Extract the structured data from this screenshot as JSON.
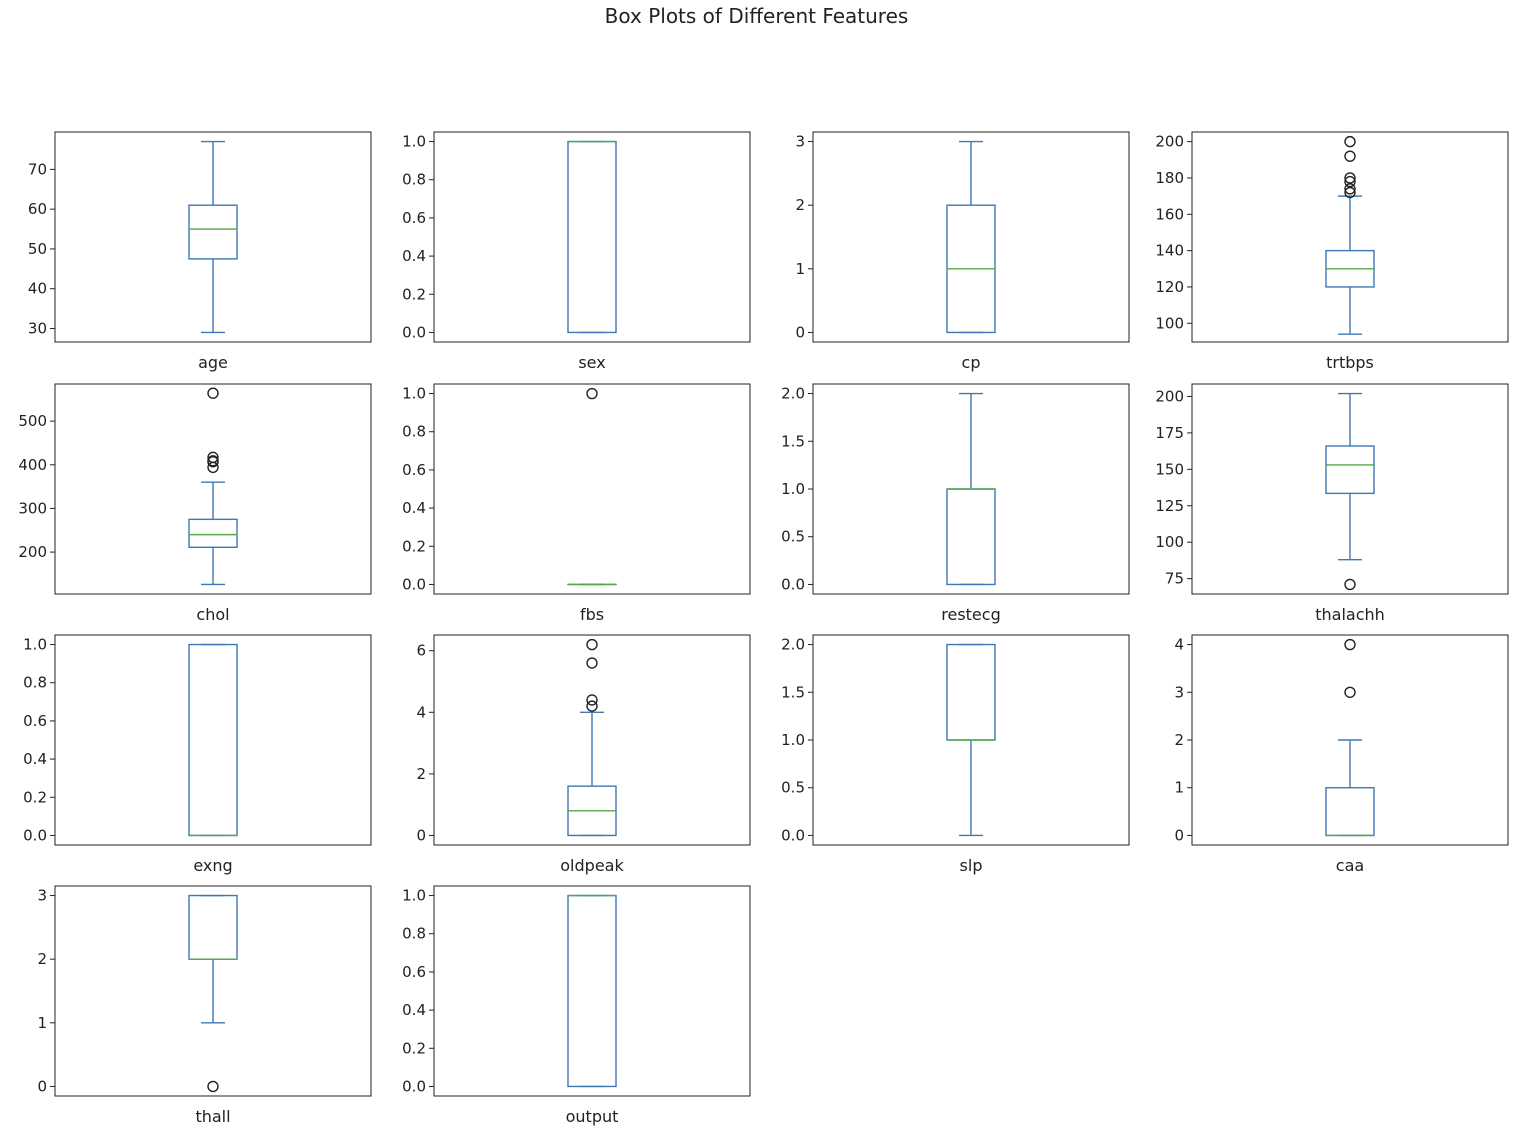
{
  "title": "Box Plots of Different Features",
  "colors": {
    "box": "#3f77b4",
    "median": "#54a845",
    "flier": "#222222",
    "frame": "#222222"
  },
  "chart_data": [
    {
      "type": "box",
      "xlabel": "age",
      "ylim": [
        26.6,
        79.4
      ],
      "yticks": [
        30,
        40,
        50,
        60,
        70
      ],
      "stats": {
        "whislo": 29,
        "q1": 47.5,
        "med": 55,
        "q3": 61,
        "whishi": 77
      },
      "fliers": []
    },
    {
      "type": "box",
      "xlabel": "sex",
      "ylim": [
        -0.05,
        1.05
      ],
      "yticks": [
        0.0,
        0.2,
        0.4,
        0.6,
        0.8,
        1.0
      ],
      "stats": {
        "whislo": 0,
        "q1": 0,
        "med": 1,
        "q3": 1,
        "whishi": 1
      },
      "fliers": []
    },
    {
      "type": "box",
      "xlabel": "cp",
      "ylim": [
        -0.15,
        3.15
      ],
      "yticks": [
        0,
        1,
        2,
        3
      ],
      "stats": {
        "whislo": 0,
        "q1": 0,
        "med": 1,
        "q3": 2,
        "whishi": 3
      },
      "fliers": []
    },
    {
      "type": "box",
      "xlabel": "trtbps",
      "ylim": [
        89.7,
        205.3
      ],
      "yticks": [
        100,
        120,
        140,
        160,
        180,
        200
      ],
      "stats": {
        "whislo": 94,
        "q1": 120,
        "med": 130,
        "q3": 140,
        "whishi": 170
      },
      "fliers": [
        172,
        174,
        178,
        180,
        192,
        200
      ]
    },
    {
      "type": "box",
      "xlabel": "chol",
      "ylim": [
        104,
        585
      ],
      "yticks": [
        200,
        300,
        400,
        500
      ],
      "stats": {
        "whislo": 126,
        "q1": 211,
        "med": 240,
        "q3": 275,
        "whishi": 360
      },
      "fliers": [
        394,
        407,
        409,
        417,
        564
      ]
    },
    {
      "type": "box",
      "xlabel": "fbs",
      "ylim": [
        -0.05,
        1.05
      ],
      "yticks": [
        0.0,
        0.2,
        0.4,
        0.6,
        0.8,
        1.0
      ],
      "stats": {
        "whislo": 0,
        "q1": 0,
        "med": 0,
        "q3": 0,
        "whishi": 0
      },
      "fliers": [
        1
      ]
    },
    {
      "type": "box",
      "xlabel": "restecg",
      "ylim": [
        -0.1,
        2.1
      ],
      "yticks": [
        0.0,
        0.5,
        1.0,
        1.5,
        2.0
      ],
      "stats": {
        "whislo": 0,
        "q1": 0,
        "med": 1,
        "q3": 1,
        "whishi": 2
      },
      "fliers": []
    },
    {
      "type": "box",
      "xlabel": "thalachh",
      "ylim": [
        64.45,
        208.55
      ],
      "yticks": [
        75,
        100,
        125,
        150,
        175,
        200
      ],
      "stats": {
        "whislo": 88,
        "q1": 133.5,
        "med": 153,
        "q3": 166,
        "whishi": 202
      },
      "fliers": [
        71
      ]
    },
    {
      "type": "box",
      "xlabel": "exng",
      "ylim": [
        -0.05,
        1.05
      ],
      "yticks": [
        0.0,
        0.2,
        0.4,
        0.6,
        0.8,
        1.0
      ],
      "stats": {
        "whislo": 0,
        "q1": 0,
        "med": 0,
        "q3": 1,
        "whishi": 1
      },
      "fliers": []
    },
    {
      "type": "box",
      "xlabel": "oldpeak",
      "ylim": [
        -0.31,
        6.51
      ],
      "yticks": [
        0,
        2,
        4,
        6
      ],
      "stats": {
        "whislo": 0,
        "q1": 0,
        "med": 0.8,
        "q3": 1.6,
        "whishi": 4.0
      },
      "fliers": [
        4.2,
        4.4,
        5.6,
        6.2
      ]
    },
    {
      "type": "box",
      "xlabel": "slp",
      "ylim": [
        -0.1,
        2.1
      ],
      "yticks": [
        0.0,
        0.5,
        1.0,
        1.5,
        2.0
      ],
      "stats": {
        "whislo": 0,
        "q1": 1,
        "med": 1,
        "q3": 2,
        "whishi": 2
      },
      "fliers": []
    },
    {
      "type": "box",
      "xlabel": "caa",
      "ylim": [
        -0.2,
        4.2
      ],
      "yticks": [
        0,
        1,
        2,
        3,
        4
      ],
      "stats": {
        "whislo": 0,
        "q1": 0,
        "med": 0,
        "q3": 1,
        "whishi": 2
      },
      "fliers": [
        3,
        4
      ]
    },
    {
      "type": "box",
      "xlabel": "thall",
      "ylim": [
        -0.15,
        3.15
      ],
      "yticks": [
        0,
        1,
        2,
        3
      ],
      "stats": {
        "whislo": 1,
        "q1": 2,
        "med": 2,
        "q3": 3,
        "whishi": 3
      },
      "fliers": [
        0
      ]
    },
    {
      "type": "box",
      "xlabel": "output",
      "ylim": [
        -0.05,
        1.05
      ],
      "yticks": [
        0.0,
        0.2,
        0.4,
        0.6,
        0.8,
        1.0
      ],
      "stats": {
        "whislo": 0,
        "q1": 0,
        "med": 1,
        "q3": 1,
        "whishi": 1
      },
      "fliers": []
    }
  ]
}
